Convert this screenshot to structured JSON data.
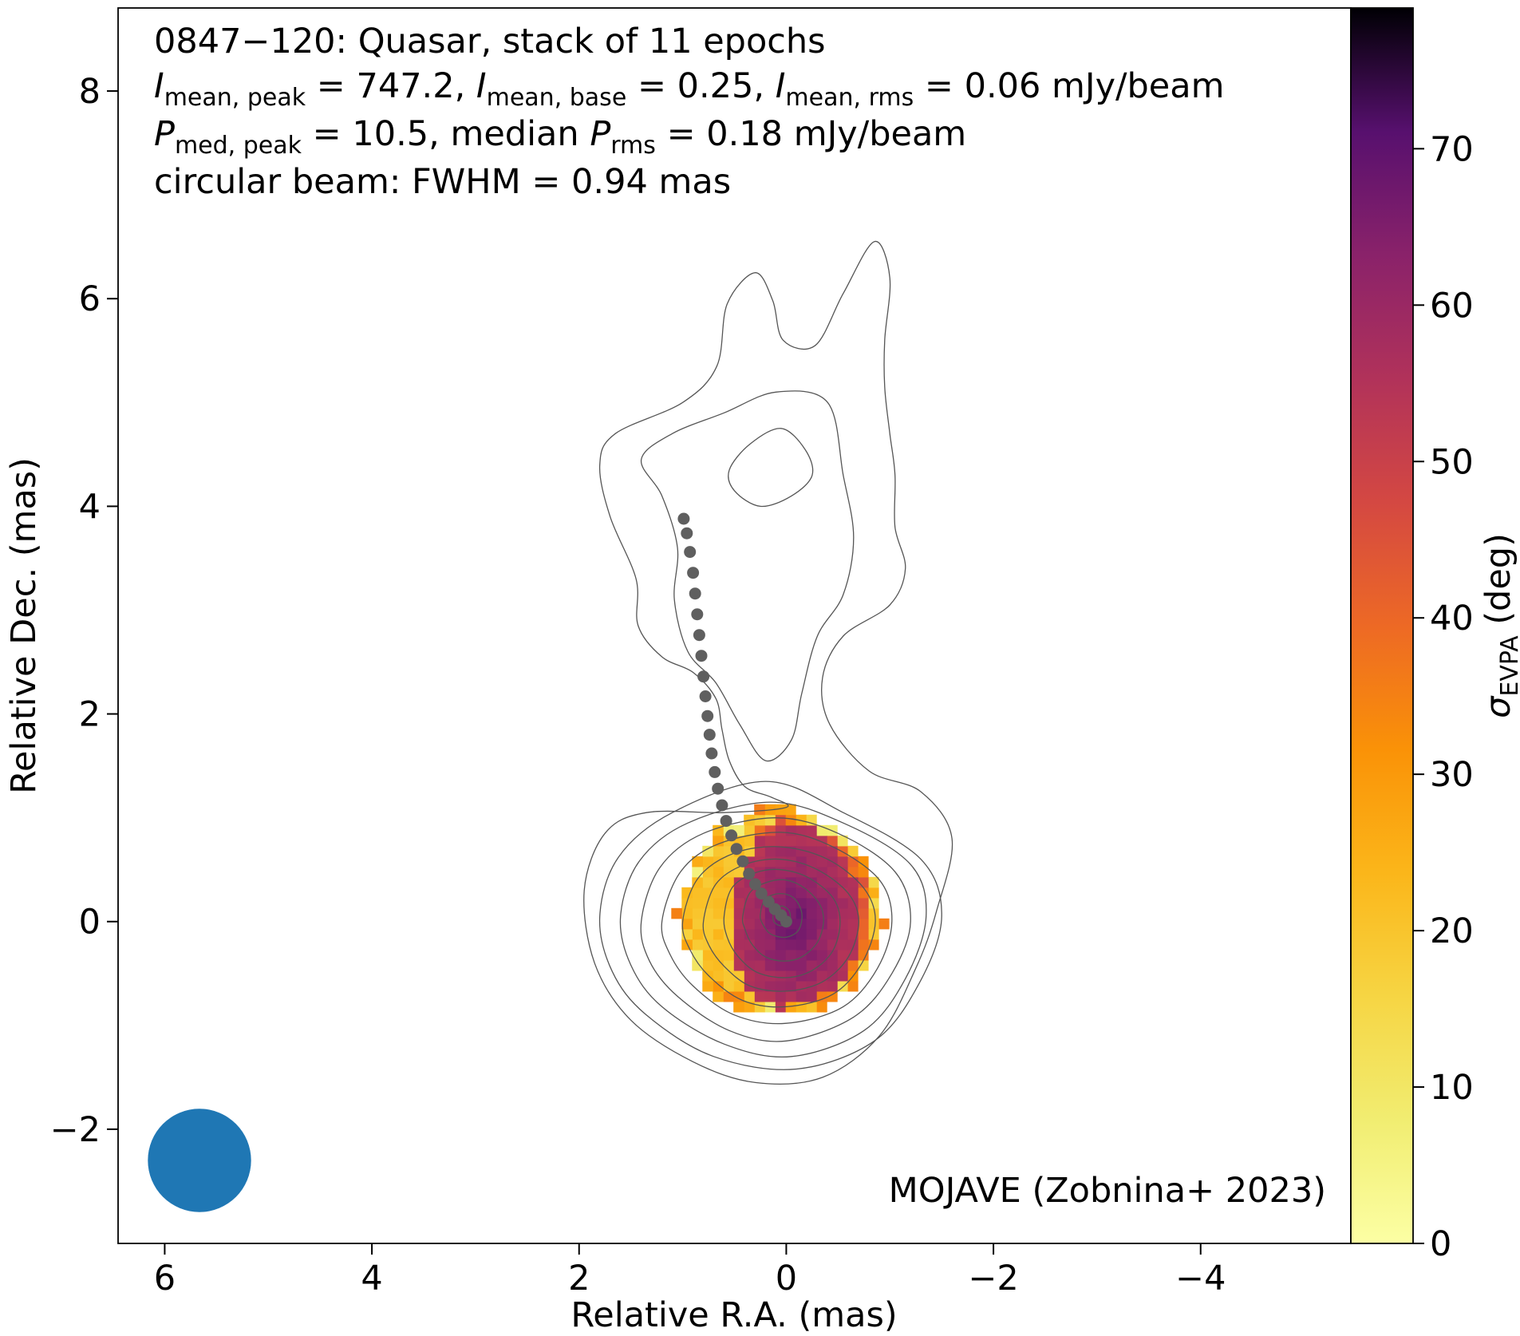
{
  "chart_data": {
    "type": "heatmap",
    "annotation": {
      "line1": "0847−120: Quasar, stack of 11 epochs",
      "line2": [
        {
          "sym": "I",
          "sub": "mean, peak",
          "rest": " = 747.2, "
        },
        {
          "sym": "I",
          "sub": "mean, base",
          "rest": " = 0.25, "
        },
        {
          "sym": "I",
          "sub": "mean, rms",
          "rest": " = 0.06 mJy/beam"
        }
      ],
      "line3": [
        {
          "sym": "P",
          "sub": "med, peak",
          "rest": " = 10.5, median "
        },
        {
          "sym": "P",
          "sub": "rms",
          "rest": " = 0.18 mJy/beam"
        }
      ],
      "line4": "circular beam: FWHM = 0.94 mas"
    },
    "credit": "MOJAVE (Zobnina+ 2023)",
    "xlabel": "Relative R.A. (mas)",
    "ylabel": "Relative Dec. (mas)",
    "xlim": [
      6.45,
      -5.45
    ],
    "ylim": [
      -3.1,
      8.8
    ],
    "xticks": [
      6,
      4,
      2,
      0,
      -2,
      -4
    ],
    "yticks": [
      -2,
      0,
      2,
      4,
      6,
      8
    ],
    "colorbar": {
      "label_sym": "σ",
      "label_sub": "EVPA",
      "label_rest": " (deg)",
      "range": [
        0,
        79
      ],
      "ticks": [
        0,
        10,
        20,
        30,
        40,
        50,
        60,
        70
      ],
      "colormap": "inferno_r"
    },
    "beam": {
      "fwhm_mas": 0.94,
      "color": "#1f77b4"
    },
    "colors": {
      "contour": "#555555",
      "ridge_line": "#5f5f5f"
    },
    "ridge_line": [
      {
        "x": 0.0,
        "y": 0.0
      },
      {
        "x": 0.05,
        "y": 0.06
      },
      {
        "x": 0.11,
        "y": 0.12
      },
      {
        "x": 0.17,
        "y": 0.19
      },
      {
        "x": 0.24,
        "y": 0.27
      },
      {
        "x": 0.3,
        "y": 0.36
      },
      {
        "x": 0.36,
        "y": 0.46
      },
      {
        "x": 0.42,
        "y": 0.58
      },
      {
        "x": 0.48,
        "y": 0.7
      },
      {
        "x": 0.53,
        "y": 0.83
      },
      {
        "x": 0.58,
        "y": 0.97
      },
      {
        "x": 0.62,
        "y": 1.12
      },
      {
        "x": 0.66,
        "y": 1.28
      },
      {
        "x": 0.69,
        "y": 1.44
      },
      {
        "x": 0.72,
        "y": 1.62
      },
      {
        "x": 0.74,
        "y": 1.8
      },
      {
        "x": 0.76,
        "y": 1.98
      },
      {
        "x": 0.78,
        "y": 2.17
      },
      {
        "x": 0.8,
        "y": 2.36
      },
      {
        "x": 0.82,
        "y": 2.56
      },
      {
        "x": 0.84,
        "y": 2.76
      },
      {
        "x": 0.86,
        "y": 2.96
      },
      {
        "x": 0.88,
        "y": 3.16
      },
      {
        "x": 0.9,
        "y": 3.36
      },
      {
        "x": 0.93,
        "y": 3.56
      },
      {
        "x": 0.96,
        "y": 3.74
      },
      {
        "x": 0.99,
        "y": 3.88
      }
    ],
    "intensity_contours": [
      [
        [
          0.0,
          1.1
        ],
        [
          0.15,
          1.2
        ],
        [
          0.4,
          1.3
        ],
        [
          0.55,
          1.55
        ],
        [
          0.62,
          1.85
        ],
        [
          0.68,
          2.15
        ],
        [
          0.9,
          2.4
        ],
        [
          1.2,
          2.55
        ],
        [
          1.43,
          2.85
        ],
        [
          1.45,
          3.3
        ],
        [
          1.7,
          3.9
        ],
        [
          1.8,
          4.4
        ],
        [
          1.65,
          4.7
        ],
        [
          1.0,
          5.0
        ],
        [
          0.67,
          5.35
        ],
        [
          0.57,
          5.95
        ],
        [
          0.3,
          6.25
        ],
        [
          0.13,
          5.98
        ],
        [
          0.03,
          5.6
        ],
        [
          -0.28,
          5.55
        ],
        [
          -0.55,
          6.05
        ],
        [
          -0.85,
          6.55
        ],
        [
          -1.0,
          6.2
        ],
        [
          -0.95,
          5.6
        ],
        [
          -0.95,
          5.15
        ],
        [
          -1.0,
          4.7
        ],
        [
          -1.05,
          4.3
        ],
        [
          -1.05,
          3.8
        ],
        [
          -1.15,
          3.4
        ],
        [
          -1.0,
          3.05
        ],
        [
          -0.55,
          2.75
        ],
        [
          -0.35,
          2.35
        ],
        [
          -0.42,
          1.9
        ],
        [
          -0.8,
          1.45
        ],
        [
          -1.3,
          1.25
        ],
        [
          -1.6,
          0.8
        ],
        [
          -1.45,
          0.1
        ],
        [
          -1.25,
          -0.45
        ],
        [
          -0.9,
          -1.1
        ],
        [
          -0.35,
          -1.5
        ],
        [
          0.3,
          -1.55
        ],
        [
          0.9,
          -1.35
        ],
        [
          1.5,
          -0.95
        ],
        [
          1.85,
          -0.4
        ],
        [
          1.95,
          0.3
        ],
        [
          1.75,
          0.85
        ],
        [
          1.35,
          1.05
        ],
        [
          0.6,
          1.05
        ]
      ],
      [
        [
          0.2,
          1.55
        ],
        [
          0.45,
          1.9
        ],
        [
          0.68,
          2.3
        ],
        [
          0.95,
          2.6
        ],
        [
          1.08,
          3.1
        ],
        [
          1.05,
          3.6
        ],
        [
          1.2,
          4.1
        ],
        [
          1.4,
          4.45
        ],
        [
          1.1,
          4.7
        ],
        [
          0.6,
          4.9
        ],
        [
          0.1,
          5.1
        ],
        [
          -0.4,
          5.0
        ],
        [
          -0.55,
          4.3
        ],
        [
          -0.65,
          3.7
        ],
        [
          -0.55,
          3.15
        ],
        [
          -0.3,
          2.75
        ],
        [
          -0.15,
          2.2
        ],
        [
          -0.05,
          1.75
        ]
      ],
      [
        [
          0.55,
          4.35
        ],
        [
          0.35,
          4.6
        ],
        [
          0.05,
          4.75
        ],
        [
          -0.18,
          4.55
        ],
        [
          -0.25,
          4.3
        ],
        [
          -0.05,
          4.1
        ],
        [
          0.25,
          4.0
        ],
        [
          0.5,
          4.15
        ]
      ],
      [
        [
          1.8,
          0.05
        ],
        [
          1.62,
          0.62
        ],
        [
          1.1,
          1.05
        ],
        [
          0.2,
          1.35
        ],
        [
          -0.55,
          1.05
        ],
        [
          -1.3,
          0.6
        ],
        [
          -1.5,
          0.05
        ],
        [
          -1.28,
          -0.6
        ],
        [
          -0.85,
          -1.15
        ],
        [
          -0.1,
          -1.42
        ],
        [
          0.7,
          -1.3
        ],
        [
          1.35,
          -0.9
        ],
        [
          1.68,
          -0.48
        ]
      ],
      [
        [
          1.6,
          0.05
        ],
        [
          1.42,
          0.58
        ],
        [
          0.95,
          0.95
        ],
        [
          0.15,
          1.15
        ],
        [
          -0.55,
          0.95
        ],
        [
          -1.2,
          0.55
        ],
        [
          -1.35,
          0.05
        ],
        [
          -1.15,
          -0.55
        ],
        [
          -0.75,
          -1.05
        ],
        [
          -0.05,
          -1.3
        ],
        [
          0.6,
          -1.18
        ],
        [
          1.2,
          -0.82
        ],
        [
          1.5,
          -0.42
        ]
      ],
      [
        [
          1.4,
          0.0
        ],
        [
          1.22,
          0.52
        ],
        [
          0.8,
          0.85
        ],
        [
          0.1,
          1.0
        ],
        [
          -0.5,
          0.85
        ],
        [
          -1.05,
          0.48
        ],
        [
          -1.2,
          0.0
        ],
        [
          -1.02,
          -0.5
        ],
        [
          -0.65,
          -0.92
        ],
        [
          0.0,
          -1.15
        ],
        [
          0.55,
          -1.05
        ],
        [
          1.05,
          -0.72
        ],
        [
          1.32,
          -0.38
        ]
      ],
      [
        [
          1.2,
          0.0
        ],
        [
          1.02,
          0.48
        ],
        [
          0.65,
          0.75
        ],
        [
          0.05,
          0.86
        ],
        [
          -0.45,
          0.72
        ],
        [
          -0.9,
          0.4
        ],
        [
          -1.02,
          0.0
        ],
        [
          -0.88,
          -0.45
        ],
        [
          -0.55,
          -0.82
        ],
        [
          0.0,
          -0.98
        ],
        [
          0.5,
          -0.9
        ],
        [
          0.9,
          -0.62
        ],
        [
          1.12,
          -0.32
        ]
      ],
      [
        [
          1.0,
          0.0
        ],
        [
          0.85,
          0.42
        ],
        [
          0.5,
          0.66
        ],
        [
          0.05,
          0.72
        ],
        [
          -0.4,
          0.6
        ],
        [
          -0.75,
          0.32
        ],
        [
          -0.86,
          0.0
        ],
        [
          -0.73,
          -0.4
        ],
        [
          -0.45,
          -0.7
        ],
        [
          0.0,
          -0.82
        ],
        [
          0.42,
          -0.76
        ],
        [
          0.75,
          -0.52
        ],
        [
          0.93,
          -0.27
        ]
      ],
      [
        [
          0.8,
          0.0
        ],
        [
          0.68,
          0.36
        ],
        [
          0.4,
          0.55
        ],
        [
          0.05,
          0.6
        ],
        [
          -0.3,
          0.5
        ],
        [
          -0.6,
          0.27
        ],
        [
          -0.7,
          0.0
        ],
        [
          -0.6,
          -0.34
        ],
        [
          -0.35,
          -0.58
        ],
        [
          0.0,
          -0.67
        ],
        [
          0.35,
          -0.62
        ],
        [
          0.6,
          -0.43
        ],
        [
          0.75,
          -0.22
        ]
      ],
      [
        [
          0.6,
          0.05
        ],
        [
          0.52,
          0.33
        ],
        [
          0.3,
          0.47
        ],
        [
          0.05,
          0.5
        ],
        [
          -0.22,
          0.42
        ],
        [
          -0.45,
          0.23
        ],
        [
          -0.52,
          0.0
        ],
        [
          -0.45,
          -0.28
        ],
        [
          -0.25,
          -0.47
        ],
        [
          0.0,
          -0.54
        ],
        [
          0.28,
          -0.49
        ],
        [
          0.47,
          -0.33
        ],
        [
          0.57,
          -0.15
        ]
      ],
      [
        [
          0.42,
          0.05
        ],
        [
          0.35,
          0.28
        ],
        [
          0.18,
          0.38
        ],
        [
          0.0,
          0.4
        ],
        [
          -0.18,
          0.32
        ],
        [
          -0.32,
          0.17
        ],
        [
          -0.36,
          0.0
        ],
        [
          -0.3,
          -0.2
        ],
        [
          -0.15,
          -0.34
        ],
        [
          0.02,
          -0.38
        ],
        [
          0.2,
          -0.34
        ],
        [
          0.33,
          -0.22
        ],
        [
          0.4,
          -0.07
        ]
      ],
      [
        [
          0.25,
          0.07
        ],
        [
          0.2,
          0.22
        ],
        [
          0.05,
          0.27
        ],
        [
          -0.08,
          0.22
        ],
        [
          -0.15,
          0.08
        ],
        [
          -0.12,
          -0.08
        ],
        [
          0.0,
          -0.15
        ],
        [
          0.15,
          -0.12
        ],
        [
          0.23,
          -0.02
        ]
      ],
      [
        [
          0.12,
          0.08
        ],
        [
          0.05,
          0.15
        ],
        [
          -0.03,
          0.1
        ],
        [
          -0.03,
          0.0
        ],
        [
          0.05,
          -0.04
        ],
        [
          0.12,
          0.0
        ]
      ]
    ],
    "evpa_map": {
      "pixel_mas": 0.1,
      "center": {
        "x": 0.06,
        "y": 0.08
      },
      "radius_x": 0.96,
      "radius_y": 1.0,
      "note_values_deg": {
        "outer_east": 20,
        "core": 62,
        "rim_west": 40,
        "edge": 8
      }
    }
  }
}
